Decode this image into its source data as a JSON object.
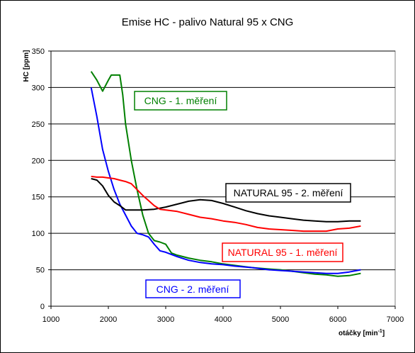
{
  "chart_data": {
    "type": "line",
    "title": "Emise HC - palivo Natural 95 x CNG",
    "xlabel": "otáčky [min",
    "xlabel_sup": "-1",
    "xlabel_end": "]",
    "ylabel": "HC [ppm]",
    "xlim": [
      1000,
      7000
    ],
    "ylim": [
      0,
      350
    ],
    "xticks": [
      "1000",
      "2000",
      "3000",
      "4000",
      "5000",
      "6000",
      "7000"
    ],
    "yticks": [
      "0",
      "50",
      "100",
      "150",
      "200",
      "250",
      "300",
      "350"
    ],
    "grid": "horizontal",
    "series": [
      {
        "name": "CNG - 1. měření",
        "color": "#008000",
        "x": [
          1700,
          1800,
          1900,
          2000,
          2050,
          2100,
          2200,
          2250,
          2300,
          2400,
          2500,
          2600,
          2700,
          2800,
          2900,
          3000,
          3100,
          3200,
          3400,
          3600,
          3800,
          4000,
          4200,
          4500,
          4800,
          5000,
          5200,
          5400,
          5600,
          5800,
          6000,
          6200,
          6400
        ],
        "y": [
          322,
          310,
          295,
          310,
          317,
          317,
          317,
          290,
          250,
          200,
          160,
          125,
          100,
          90,
          88,
          85,
          73,
          70,
          66,
          63,
          61,
          58,
          56,
          53,
          51,
          50,
          48,
          46,
          44,
          43,
          41,
          42,
          45
        ]
      },
      {
        "name": "CNG - 2. měření",
        "color": "#0000ff",
        "x": [
          1700,
          1800,
          1900,
          2000,
          2100,
          2200,
          2300,
          2400,
          2500,
          2600,
          2700,
          2800,
          2900,
          3000,
          3200,
          3400,
          3600,
          3800,
          4000,
          4200,
          4500,
          4800,
          5000,
          5200,
          5400,
          5600,
          5800,
          6000,
          6200,
          6400
        ],
        "y": [
          300,
          260,
          215,
          185,
          160,
          140,
          125,
          110,
          100,
          98,
          95,
          85,
          76,
          74,
          68,
          63,
          60,
          58,
          57,
          55,
          53,
          50,
          49,
          48,
          47,
          46,
          45,
          45,
          47,
          50
        ]
      },
      {
        "name": "NATURAL 95 - 2. měření",
        "color": "#000000",
        "x": [
          1700,
          1800,
          1900,
          2000,
          2100,
          2200,
          2300,
          2400,
          2600,
          2800,
          3000,
          3200,
          3400,
          3600,
          3800,
          4000,
          4200,
          4400,
          4600,
          4800,
          5000,
          5200,
          5400,
          5600,
          5800,
          6000,
          6200,
          6400
        ],
        "y": [
          175,
          173,
          165,
          152,
          143,
          138,
          132,
          132,
          132,
          133,
          136,
          140,
          144,
          146,
          145,
          141,
          136,
          131,
          127,
          124,
          122,
          120,
          118,
          117,
          116,
          116,
          117,
          117
        ]
      },
      {
        "name": "NATURAL 95 - 1. měření",
        "color": "#ff0000",
        "x": [
          1700,
          1800,
          1900,
          2000,
          2100,
          2200,
          2300,
          2400,
          2500,
          2600,
          2700,
          2800,
          2900,
          3000,
          3200,
          3400,
          3600,
          3800,
          4000,
          4200,
          4400,
          4600,
          4800,
          5000,
          5200,
          5400,
          5600,
          5800,
          6000,
          6200,
          6400
        ],
        "y": [
          178,
          177,
          177,
          176,
          175,
          173,
          171,
          168,
          160,
          152,
          145,
          138,
          133,
          132,
          130,
          126,
          122,
          120,
          117,
          115,
          112,
          108,
          106,
          105,
          104,
          103,
          103,
          103,
          106,
          107,
          110
        ]
      }
    ]
  }
}
